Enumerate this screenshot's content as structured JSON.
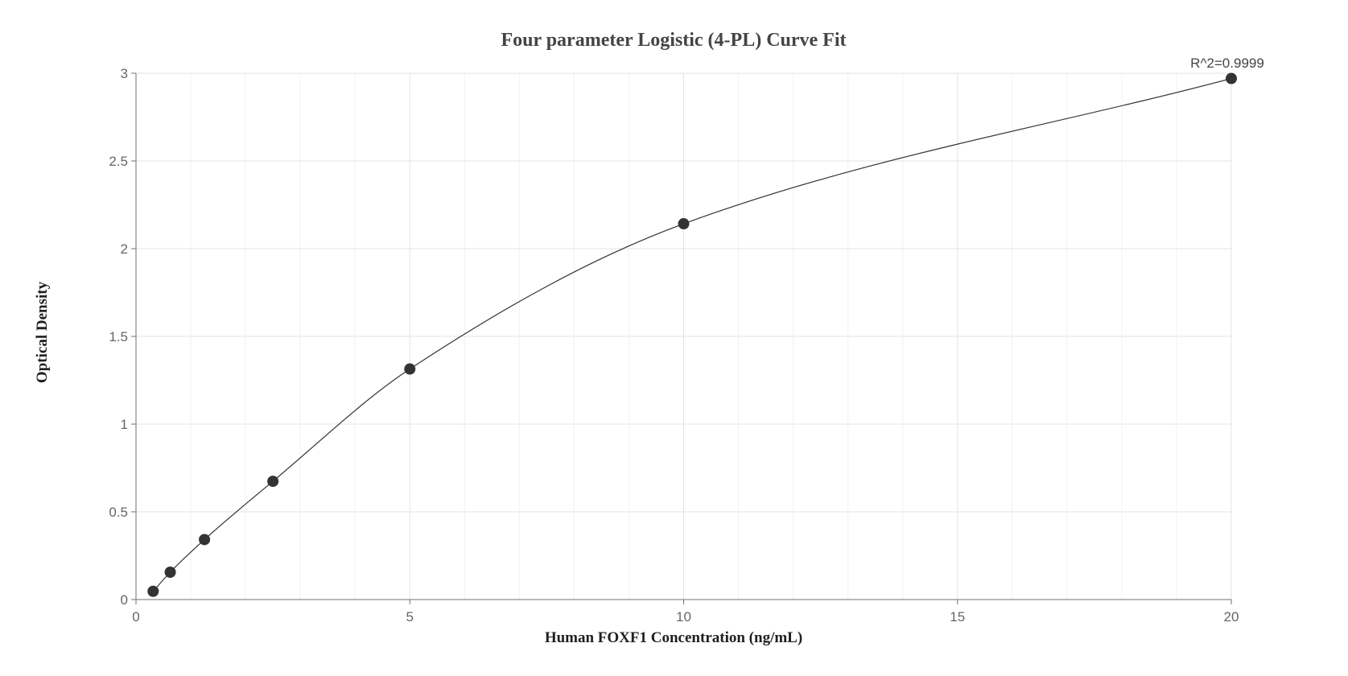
{
  "chart_data": {
    "type": "scatter",
    "title": "Four parameter Logistic (4-PL) Curve Fit",
    "xlabel": "Human FOXF1 Concentration (ng/mL)",
    "ylabel": "Optical Density",
    "xlim": [
      0,
      20
    ],
    "ylim": [
      0,
      3
    ],
    "x_ticks": [
      0,
      5,
      10,
      15,
      20
    ],
    "x_tick_labels": [
      "0",
      "5",
      "10",
      "15",
      "20"
    ],
    "y_ticks": [
      0,
      0.5,
      1,
      1.5,
      2,
      2.5,
      3
    ],
    "y_tick_labels": [
      "0",
      "0.5",
      "1",
      "1.5",
      "2",
      "2.5",
      "3"
    ],
    "grid": true,
    "series": [
      {
        "type": "scatter",
        "x": [
          0.3125,
          0.625,
          1.25,
          2.5,
          5,
          10,
          20
        ],
        "y": [
          0.047,
          0.156,
          0.342,
          0.674,
          1.314,
          2.142,
          2.97
        ]
      },
      {
        "type": "line",
        "fit": "4PL"
      }
    ],
    "annotations": [
      {
        "text": "R^2=0.9999",
        "x": 20,
        "y": 2.97
      }
    ],
    "colors": {
      "point": "#333333",
      "curve": "#333333",
      "grid_major": "#e0e3e8",
      "grid_minor": "#f1f2f4",
      "axis": "#6e7079"
    }
  }
}
